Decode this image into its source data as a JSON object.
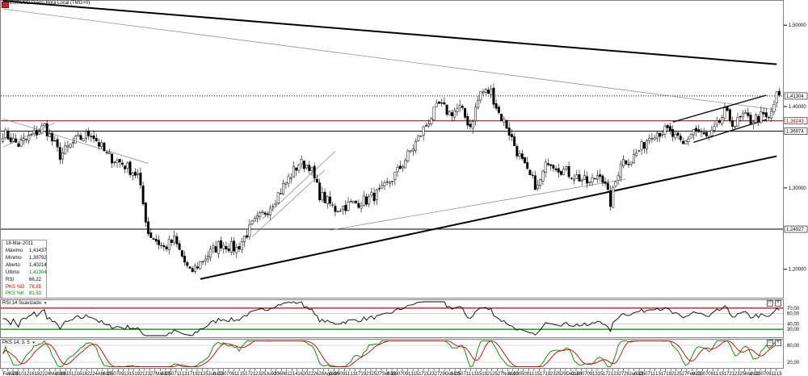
{
  "window": {
    "title": "EURUSD Diário Hora Local (TMG+0)",
    "app_icon": "chart-app-icon"
  },
  "price_axis": {
    "labels": [
      "1,50000",
      "1,40000",
      "1,30000",
      "1,20000"
    ],
    "levels": [
      1.5,
      1.4,
      1.3,
      1.2
    ],
    "marked_levels": [
      {
        "label": "1,41304",
        "value": 1.41304,
        "style": "dotted",
        "color": "#000000"
      },
      {
        "label": "1,38243",
        "value": 1.38243,
        "style": "solid",
        "color": "#800000"
      },
      {
        "label": "1,36974",
        "value": 1.36974,
        "style": "solid",
        "color": "#000000"
      },
      {
        "label": "1,24927",
        "value": 1.24927,
        "style": "solid",
        "color": "#000000"
      }
    ]
  },
  "info_panel": {
    "date": "18-Mar-2011",
    "rows": [
      {
        "key": "Máximo",
        "value": "1,41437",
        "color": "#000000"
      },
      {
        "key": "Mínimo",
        "value": "1,39792",
        "color": "#000000"
      },
      {
        "key": "Aberto",
        "value": "1,40214",
        "color": "#000000"
      },
      {
        "key": "Último",
        "value": "1,41304",
        "color": "#000000"
      },
      {
        "key": "RSI",
        "value": "66,22",
        "color": "#000000"
      },
      {
        "key": "PKS %D",
        "value": "78,85",
        "color": "#c00000"
      },
      {
        "key": "PKS %K",
        "value": "81,53",
        "color": "#008000"
      }
    ]
  },
  "rsi_panel": {
    "title": "RSI 14 Suavizado",
    "axis_labels": [
      "70,00",
      "60,00",
      "40,00",
      "30,00"
    ],
    "levels": [
      70,
      60,
      40,
      30
    ],
    "overbought_color": "#c00000",
    "oversold_color": "#008000"
  },
  "stoch_panel": {
    "title": "PKS 14, 3, 5",
    "axis_labels": [
      "80,00",
      "20,00"
    ],
    "levels": [
      80,
      20
    ],
    "k_color": "#008000",
    "d_color": "#c00000"
  },
  "time_axis": {
    "labels": [
      "Fev-10",
      "03",
      "08",
      "10",
      "12",
      "16",
      "18",
      "22",
      "24",
      "Mar-10",
      "03",
      "08",
      "10",
      "12",
      "16",
      "18",
      "22",
      "24",
      "Abr-10",
      "01",
      "05",
      "07",
      "09",
      "13",
      "15",
      "19",
      "21",
      "23",
      "27",
      "Mai-10",
      "03",
      "05",
      "07",
      "11",
      "13",
      "17",
      "19",
      "21",
      "25",
      "Jun-10",
      "01",
      "03",
      "07",
      "09",
      "11",
      "15",
      "17",
      "21",
      "23",
      "25",
      "Jul-10",
      "02",
      "06",
      "08",
      "12",
      "14",
      "16",
      "20",
      "22",
      "26",
      "28",
      "Ago-10",
      "03",
      "05",
      "09",
      "11",
      "13",
      "17",
      "19",
      "23",
      "25",
      "27",
      "Set-10",
      "01",
      "03",
      "07",
      "09",
      "13",
      "15",
      "17",
      "21",
      "23",
      "27",
      "29",
      "Out-10",
      "01",
      "05",
      "07",
      "11",
      "13",
      "15",
      "19",
      "21",
      "25",
      "27",
      "Nov-10",
      "01",
      "03",
      "05",
      "09",
      "11",
      "15",
      "17",
      "19",
      "23",
      "25",
      "29",
      "Dez-10",
      "01",
      "03",
      "07",
      "09",
      "13",
      "15",
      "17",
      "21",
      "23",
      "27",
      "29",
      "Jan-11",
      "03",
      "05",
      "07",
      "11",
      "13",
      "17",
      "19",
      "21",
      "25",
      "27",
      "Fev-11",
      "01",
      "03",
      "07",
      "09",
      "11",
      "15",
      "17",
      "21",
      "23",
      "25",
      "Mar-11",
      "01",
      "03",
      "07",
      "09",
      "11",
      "15"
    ]
  },
  "chart_data": {
    "type": "candlestick",
    "symbol": "EURUSD",
    "interval": "Diário",
    "ylim": [
      1.165,
      1.53
    ],
    "waypoints": [
      [
        0,
        1.368
      ],
      [
        6,
        1.353
      ],
      [
        12,
        1.366
      ],
      [
        16,
        1.376
      ],
      [
        22,
        1.34
      ],
      [
        28,
        1.358
      ],
      [
        34,
        1.368
      ],
      [
        40,
        1.34
      ],
      [
        46,
        1.33
      ],
      [
        52,
        1.315
      ],
      [
        56,
        1.245
      ],
      [
        62,
        1.226
      ],
      [
        66,
        1.236
      ],
      [
        72,
        1.195
      ],
      [
        78,
        1.215
      ],
      [
        84,
        1.232
      ],
      [
        90,
        1.225
      ],
      [
        96,
        1.254
      ],
      [
        102,
        1.274
      ],
      [
        108,
        1.302
      ],
      [
        114,
        1.33
      ],
      [
        118,
        1.328
      ],
      [
        122,
        1.292
      ],
      [
        128,
        1.274
      ],
      [
        134,
        1.28
      ],
      [
        140,
        1.285
      ],
      [
        146,
        1.296
      ],
      [
        152,
        1.32
      ],
      [
        158,
        1.35
      ],
      [
        164,
        1.383
      ],
      [
        168,
        1.402
      ],
      [
        172,
        1.392
      ],
      [
        176,
        1.398
      ],
      [
        180,
        1.376
      ],
      [
        184,
        1.418
      ],
      [
        188,
        1.418
      ],
      [
        191,
        1.392
      ],
      [
        194,
        1.376
      ],
      [
        198,
        1.345
      ],
      [
        202,
        1.318
      ],
      [
        206,
        1.3
      ],
      [
        210,
        1.335
      ],
      [
        214,
        1.325
      ],
      [
        218,
        1.318
      ],
      [
        222,
        1.312
      ],
      [
        226,
        1.305
      ],
      [
        230,
        1.32
      ],
      [
        234,
        1.282
      ],
      [
        238,
        1.333
      ],
      [
        242,
        1.335
      ],
      [
        246,
        1.35
      ],
      [
        250,
        1.368
      ],
      [
        256,
        1.37
      ],
      [
        262,
        1.352
      ],
      [
        266,
        1.372
      ],
      [
        272,
        1.36
      ],
      [
        278,
        1.392
      ],
      [
        282,
        1.378
      ],
      [
        285,
        1.388
      ],
      [
        288,
        1.383
      ],
      [
        292,
        1.388
      ],
      [
        295,
        1.384
      ],
      [
        298,
        1.413
      ]
    ],
    "hlines": [
      {
        "price": 1.41304,
        "label": "1,41304"
      },
      {
        "price": 1.38243,
        "label": "1,38243"
      },
      {
        "price": 1.36974,
        "label": "1,36974"
      },
      {
        "price": 1.24927,
        "label": "1,24927"
      }
    ],
    "trendlines": [
      {
        "from": [
          0,
          1.53
        ],
        "to": [
          298,
          1.452
        ],
        "weight": "bold"
      },
      {
        "from": [
          0,
          1.52
        ],
        "to": [
          298,
          1.396
        ],
        "weight": "thin"
      },
      {
        "from": [
          76,
          1.188
        ],
        "to": [
          298,
          1.339
        ],
        "weight": "bold"
      },
      {
        "from": [
          126,
          1.248
        ],
        "to": [
          240,
          1.311
        ],
        "weight": "thin"
      },
      {
        "from": [
          0,
          1.385
        ],
        "to": [
          56,
          1.33
        ],
        "weight": "thin"
      },
      {
        "from": [
          0,
          1.35
        ],
        "to": [
          20,
          1.38
        ],
        "weight": "thin"
      },
      {
        "from": [
          96,
          1.24
        ],
        "to": [
          124,
          1.322
        ],
        "weight": "thin"
      },
      {
        "from": [
          100,
          1.262
        ],
        "to": [
          128,
          1.345
        ],
        "weight": "thin"
      },
      {
        "from": [
          258,
          1.381
        ],
        "to": [
          294,
          1.414
        ],
        "weight": "medium"
      },
      {
        "from": [
          266,
          1.356
        ],
        "to": [
          294,
          1.384
        ],
        "weight": "medium"
      }
    ]
  }
}
